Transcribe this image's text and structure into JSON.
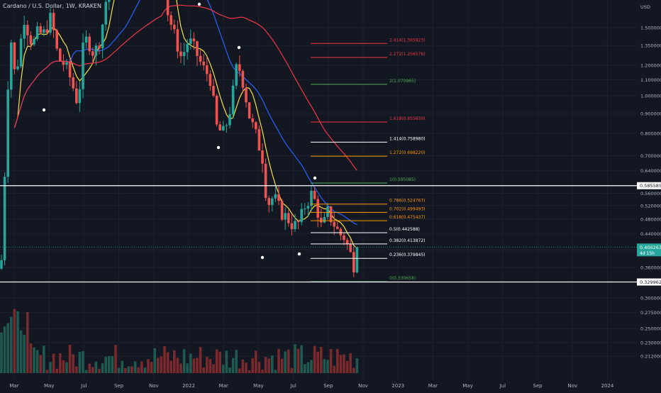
{
  "header": {
    "title": "Cardano / U.S. Dollar, 1W, KRAKEN"
  },
  "chart_data": {
    "type": "candlestick",
    "price_axis": {
      "unit": "USD",
      "scale": "log",
      "range": [
        0.195,
        1.74
      ],
      "ticks": [
        "1.500000",
        "1.350000",
        "1.200000",
        "1.100000",
        "1.000000",
        "0.900000",
        "0.800000",
        "0.700000",
        "0.640000",
        "0.560000",
        "0.520000",
        "0.480000",
        "0.440000",
        "0.400000",
        "0.360000",
        "0.300000",
        "0.275000",
        "0.250000",
        "0.230000",
        "0.212000"
      ]
    },
    "time_axis": {
      "ticks": [
        "Mar",
        "May",
        "Jul",
        "Sep",
        "Nov",
        "2022",
        "Mar",
        "May",
        "Jul",
        "Sep",
        "Nov",
        "2023",
        "Mar",
        "May",
        "Jul",
        "Sep",
        "Nov",
        "2024"
      ]
    },
    "price_markers": {
      "current": {
        "value": "0.406263",
        "countdown": "4d 15h",
        "price": 0.406263
      },
      "resistance": {
        "value": "0.585585",
        "price": 0.585585
      },
      "support": {
        "value": "0.329962",
        "price": 0.329962
      }
    },
    "fib_levels": [
      {
        "label": "2.414(1.365923)",
        "price": 1.365923,
        "color": "#f23645"
      },
      {
        "label": "2.272(1.256576)",
        "price": 1.256576,
        "color": "#f23645"
      },
      {
        "label": "2(1.070965)",
        "price": 1.070965,
        "color": "#4caf50"
      },
      {
        "label": "1.618(0.855639)",
        "price": 0.855639,
        "color": "#f23645"
      },
      {
        "label": "1.414(0.758980)",
        "price": 0.75898,
        "color": "#ffffff"
      },
      {
        "label": "1.272(0.698220)",
        "price": 0.69822,
        "color": "#ff9800"
      },
      {
        "label": "1(0.595085)",
        "price": 0.595085,
        "color": "#4caf50"
      },
      {
        "label": "0.786(0.524767)",
        "price": 0.524767,
        "color": "#ff9800"
      },
      {
        "label": "0.702(0.499493)",
        "price": 0.499493,
        "color": "#ff9800"
      },
      {
        "label": "0.618(0.475437)",
        "price": 0.475437,
        "color": "#ff9800"
      },
      {
        "label": "0.5(0.442588)",
        "price": 0.442588,
        "color": "#ffffff"
      },
      {
        "label": "0.382(0.413872)",
        "price": 0.413872,
        "color": "#ffffff"
      },
      {
        "label": "0.236(0.379845)",
        "price": 0.379845,
        "color": "#ffffff"
      },
      {
        "label": "0(0.330658)",
        "price": 0.330658,
        "color": "#4caf50"
      }
    ],
    "colors": {
      "up": "#26a69a",
      "down": "#ef5350",
      "ma_fast": "#f5e14a",
      "ma_mid": "#2962ff",
      "ma_slow": "#f23645",
      "background": "#131722"
    }
  }
}
